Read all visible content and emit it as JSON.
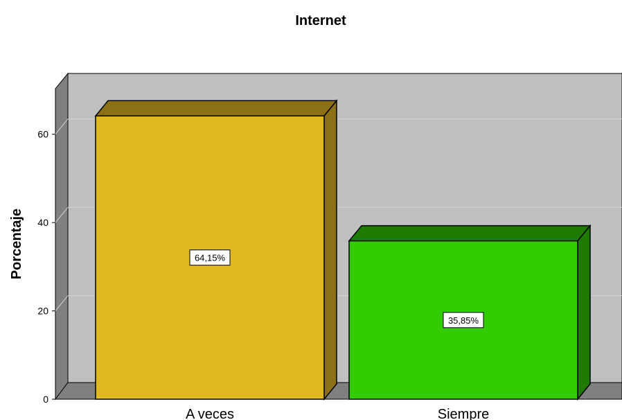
{
  "chart_data": {
    "type": "bar",
    "title": "Internet",
    "xlabel": "",
    "ylabel": "Porcentaje",
    "categories": [
      "A veces",
      "Siempre"
    ],
    "values": [
      64.15,
      35.85
    ],
    "data_labels": [
      "64,15%",
      "35,85%"
    ],
    "ylim": [
      0,
      70
    ],
    "yticks": [
      0,
      20,
      40,
      60
    ],
    "grid": true,
    "style": "3d",
    "colors": {
      "bar_fronts": [
        "#e0b820",
        "#33cc00"
      ],
      "bar_tops": [
        "#8b7015",
        "#1f7a00"
      ],
      "bar_sides": [
        "#8b7015",
        "#1f7a00"
      ],
      "plot_background": "#c0c0c0",
      "wall_side": "#808080",
      "floor": "#808080",
      "gridline": "#d4d4d4"
    }
  }
}
